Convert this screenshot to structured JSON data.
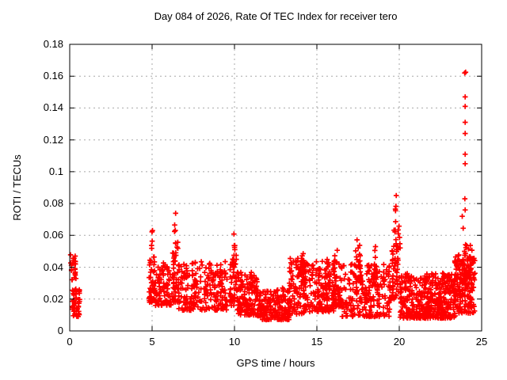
{
  "window": {
    "background": "#ffffff"
  },
  "chart_data": {
    "type": "scatter",
    "title": "Day 084 of 2026, Rate Of TEC Index for receiver tero",
    "xlabel": "GPS time / hours",
    "ylabel": "ROTI / TECUs",
    "xlim": [
      0,
      25
    ],
    "ylim": [
      0,
      0.18
    ],
    "xticks": {
      "values": [
        0,
        5,
        10,
        15,
        20,
        25
      ],
      "labels": [
        "0",
        "5",
        "10",
        "15",
        "20",
        "25"
      ]
    },
    "yticks": {
      "values": [
        0,
        0.02,
        0.04,
        0.06,
        0.08,
        0.1,
        0.12,
        0.14,
        0.16,
        0.18
      ],
      "labels": [
        "0",
        "0.02",
        "0.04",
        "0.06",
        "0.08",
        "0.1",
        "0.12",
        "0.14",
        "0.16",
        "0.18"
      ]
    },
    "grid": true,
    "grid_color": "#a8a8a8",
    "border_color": "#000000",
    "marker": "plus",
    "marker_color": "#ff0000",
    "marker_size": 6.6,
    "legend_position": "none",
    "seed": 20260084,
    "series": [
      {
        "name": "ROTI",
        "segments": [
          {
            "t0": 0.05,
            "t1": 0.38,
            "n": 24,
            "lo": 0.031,
            "hi": 0.049,
            "shape": "band",
            "skew": 0.9
          },
          {
            "t0": 0.15,
            "t1": 0.62,
            "n": 50,
            "lo": 0.009,
            "hi": 0.027,
            "shape": "band",
            "skew": 1.1
          },
          {
            "t0": 4.82,
            "t1": 5.18,
            "n": 45,
            "lo": 0.018,
            "hi": 0.042,
            "peak": 0.074,
            "shape": "spike"
          },
          {
            "t0": 5.1,
            "t1": 6.15,
            "n": 95,
            "lo": 0.016,
            "hi": 0.043,
            "shape": "band"
          },
          {
            "t0": 6.2,
            "t1": 6.65,
            "n": 50,
            "lo": 0.018,
            "hi": 0.046,
            "peak": 0.081,
            "shape": "spike"
          },
          {
            "t0": 6.6,
            "t1": 9.55,
            "n": 240,
            "lo": 0.013,
            "hi": 0.044,
            "shape": "band"
          },
          {
            "t0": 9.7,
            "t1": 10.2,
            "n": 55,
            "lo": 0.016,
            "hi": 0.042,
            "peak": 0.063,
            "shape": "spike"
          },
          {
            "t0": 10.15,
            "t1": 11.4,
            "n": 140,
            "lo": 0.01,
            "hi": 0.037,
            "shape": "band"
          },
          {
            "t0": 11.4,
            "t1": 13.35,
            "n": 190,
            "lo": 0.007,
            "hi": 0.027,
            "shape": "band"
          },
          {
            "t0": 13.3,
            "t1": 14.25,
            "n": 95,
            "lo": 0.01,
            "hi": 0.046,
            "shape": "band",
            "skew": 1.1
          },
          {
            "t0": 13.95,
            "t1": 14.3,
            "n": 18,
            "lo": 0.03,
            "hi": 0.045,
            "peak": 0.053,
            "shape": "spike"
          },
          {
            "t0": 14.2,
            "t1": 16.05,
            "n": 165,
            "lo": 0.012,
            "hi": 0.044,
            "shape": "band"
          },
          {
            "t0": 15.45,
            "t1": 15.8,
            "n": 22,
            "lo": 0.028,
            "hi": 0.042,
            "peak": 0.05,
            "shape": "spike"
          },
          {
            "t0": 16.0,
            "t1": 16.5,
            "n": 60,
            "lo": 0.015,
            "hi": 0.045,
            "peak": 0.055,
            "shape": "spike"
          },
          {
            "t0": 16.45,
            "t1": 19.5,
            "n": 235,
            "lo": 0.009,
            "hi": 0.042,
            "shape": "band"
          },
          {
            "t0": 17.3,
            "t1": 17.7,
            "n": 26,
            "lo": 0.03,
            "hi": 0.05,
            "peak": 0.064,
            "shape": "spike"
          },
          {
            "t0": 18.35,
            "t1": 18.7,
            "n": 22,
            "lo": 0.028,
            "hi": 0.046,
            "peak": 0.056,
            "shape": "spike"
          },
          {
            "t0": 19.55,
            "t1": 20.1,
            "n": 70,
            "lo": 0.02,
            "hi": 0.055,
            "peak": 0.0885,
            "shape": "spike"
          },
          {
            "t0": 20.05,
            "t1": 23.4,
            "n": 430,
            "lo": 0.008,
            "hi": 0.037,
            "shape": "band"
          },
          {
            "t0": 23.35,
            "t1": 24.6,
            "n": 185,
            "lo": 0.011,
            "hi": 0.048,
            "shape": "band",
            "skew": 1.1
          },
          {
            "t0": 23.9,
            "t1": 24.45,
            "n": 30,
            "lo": 0.03,
            "hi": 0.05,
            "peak": 0.062,
            "shape": "spike"
          }
        ],
        "outliers": [
          [
            23.97,
            0.162
          ],
          [
            24.03,
            0.1625
          ],
          [
            24.0,
            0.147
          ],
          [
            24.0,
            0.141
          ],
          [
            24.0,
            0.131
          ],
          [
            24.0,
            0.124
          ],
          [
            24.0,
            0.111
          ],
          [
            24.0,
            0.105
          ],
          [
            23.98,
            0.083
          ],
          [
            24.0,
            0.076
          ],
          [
            23.88,
            0.0645
          ],
          [
            23.82,
            0.072
          ]
        ]
      }
    ]
  }
}
